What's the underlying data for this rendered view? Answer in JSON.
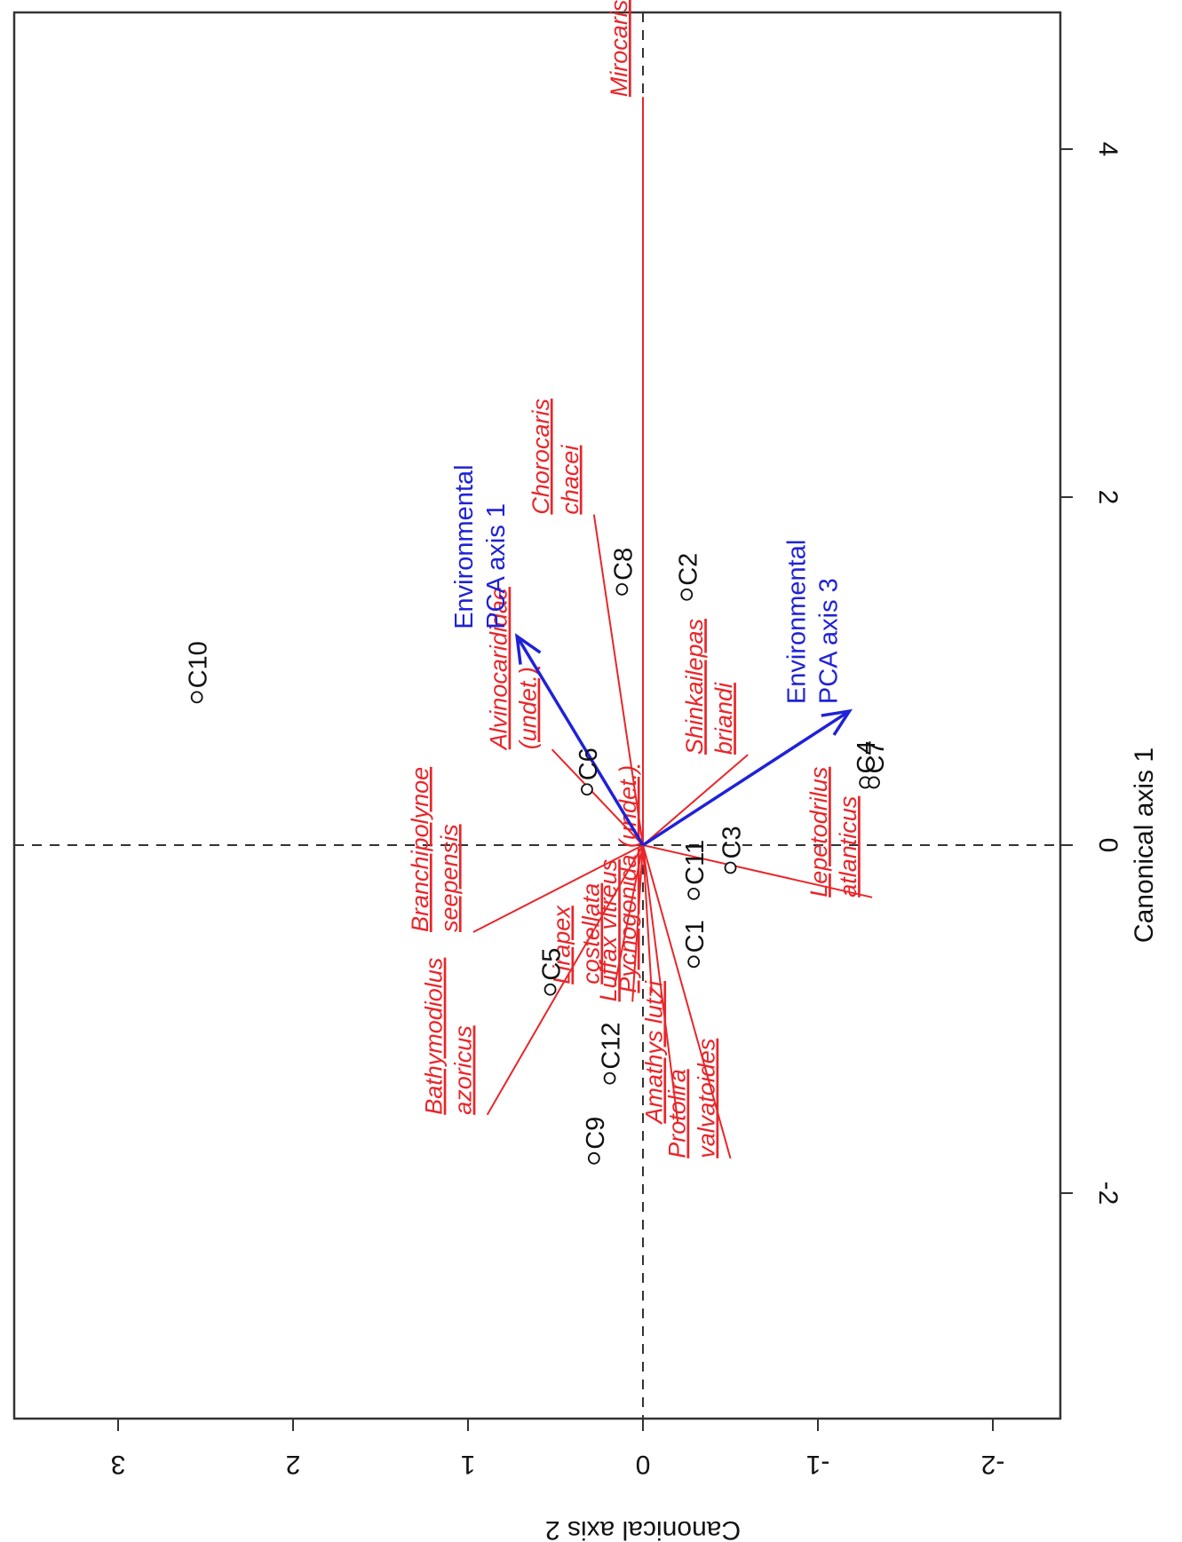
{
  "chart_data": {
    "type": "scatter",
    "title": "",
    "xlabel": "Canonical axis 1",
    "ylabel": "Canonical axis 2",
    "xlim": [
      -2.8,
      4.7
    ],
    "ylim": [
      -2.4,
      3.6
    ],
    "x_ticks": [
      -2,
      0,
      2,
      4
    ],
    "y_ticks": [
      -2,
      -1,
      0,
      1,
      2,
      3
    ],
    "grid": false,
    "reference_lines": "dashed lines at x = 0 and y = 0",
    "colors": {
      "sites": "#111111",
      "species": "#e8262a",
      "environment": "#1f22d6"
    },
    "sites": [
      {
        "label": "C10",
        "x": 0.85,
        "y": 2.55
      },
      {
        "label": "C8",
        "x": 1.47,
        "y": 0.12
      },
      {
        "label": "C2",
        "x": 1.44,
        "y": -0.25
      },
      {
        "label": "C6",
        "x": 0.32,
        "y": 0.32
      },
      {
        "label": "C4",
        "x": 0.36,
        "y": -1.27
      },
      {
        "label": "C7",
        "x": 0.36,
        "y": -1.32
      },
      {
        "label": "C3",
        "x": -0.13,
        "y": -0.5
      },
      {
        "label": "C11",
        "x": -0.28,
        "y": -0.29
      },
      {
        "label": "C1",
        "x": -0.67,
        "y": -0.29
      },
      {
        "label": "C5",
        "x": -0.83,
        "y": 0.53
      },
      {
        "label": "C12",
        "x": -1.34,
        "y": 0.19
      },
      {
        "label": "C9",
        "x": -1.8,
        "y": 0.28
      }
    ],
    "species": [
      {
        "name": "Mirocaris fortunata",
        "lines": [
          "Mirocaris fortunata"
        ],
        "x": 4.3,
        "y": 0.0
      },
      {
        "name": "Chorocaris chacei",
        "lines": [
          "Chorocaris",
          "chacei"
        ],
        "x": 1.9,
        "y": 0.28
      },
      {
        "name": "Alvinocarididae (undet.)",
        "lines": [
          "Alvinocarididae",
          "(undet.)"
        ],
        "x": 0.55,
        "y": 0.52
      },
      {
        "name": "Shinkailepas briandi",
        "lines": [
          "Shinkailepas",
          "briandi"
        ],
        "x": 0.52,
        "y": -0.6
      },
      {
        "name": "Lepetodrilus atlanticus",
        "lines": [
          "Lepetodrilus",
          "atlanticus"
        ],
        "x": -0.3,
        "y": -1.31
      },
      {
        "name": "Branchipolynoe seepensis",
        "lines": [
          "Branchipolynoe",
          "seepensis"
        ],
        "x": -0.5,
        "y": 0.97
      },
      {
        "name": "Bathymodiolus azoricus",
        "lines": [
          "Bathymodiolus",
          "azoricus"
        ],
        "x": -1.55,
        "y": 0.89
      },
      {
        "name": "Lirapex costellata",
        "lines": [
          "Lirapex",
          "costellata"
        ],
        "x": -0.8,
        "y": 0.16
      },
      {
        "name": "Luffax vitreus",
        "lines": [
          "Luffax vitreus"
        ],
        "x": -0.9,
        "y": 0.06
      },
      {
        "name": "Pycnogonida (undet.)",
        "lines": [
          "Pycnogonida (undet.)"
        ],
        "x": -0.85,
        "y": -0.05
      },
      {
        "name": "Amathys lutzi",
        "lines": [
          "Amathys lutzi"
        ],
        "x": -1.6,
        "y": -0.2
      },
      {
        "name": "Protolira valvatoides",
        "lines": [
          "Protolira",
          "valvatoides"
        ],
        "x": -1.8,
        "y": -0.5
      }
    ],
    "environmental_vectors": [
      {
        "name": "Environmental PCA axis 1",
        "lines": [
          "Environmental",
          "PCA axis 1"
        ],
        "x": 1.2,
        "y": 0.72
      },
      {
        "name": "Environmental PCA axis 3",
        "lines": [
          "Environmental",
          "PCA axis 3"
        ],
        "x": 0.77,
        "y": -1.18
      }
    ]
  }
}
